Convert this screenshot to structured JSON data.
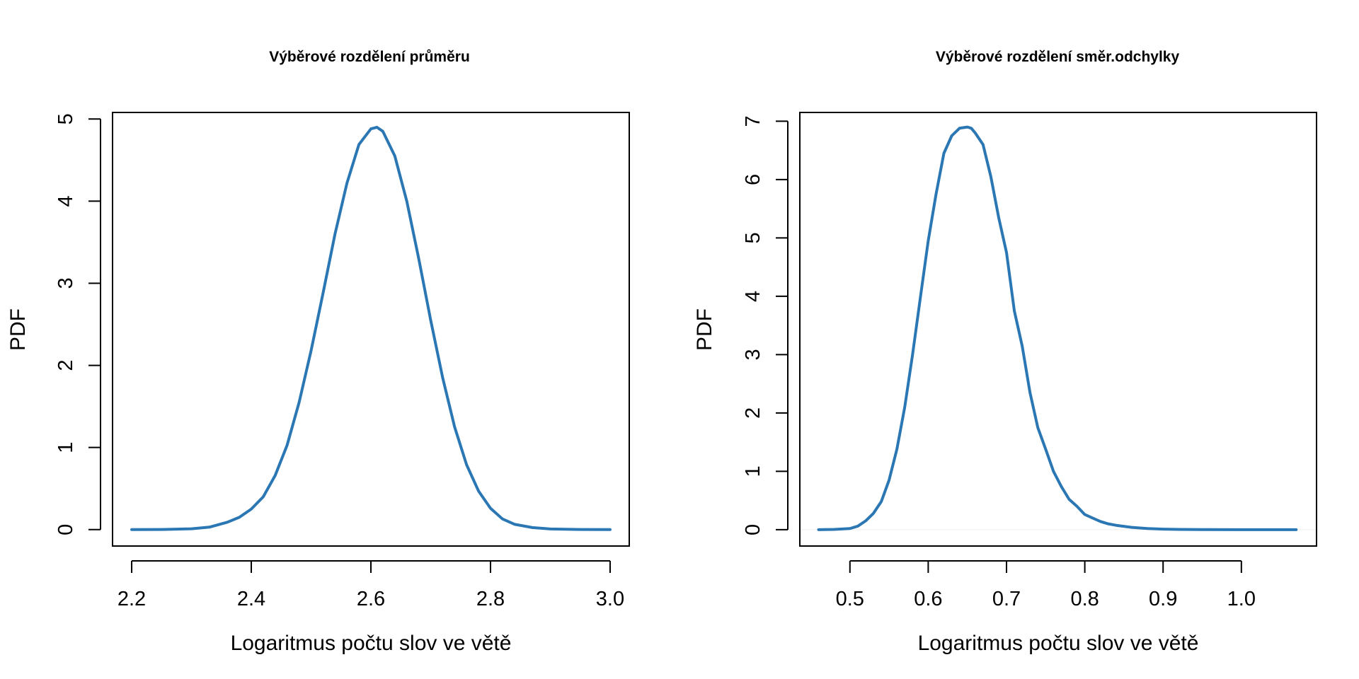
{
  "colors": {
    "line": "#2b77b4",
    "axis": "#000000",
    "background": "#ffffff"
  },
  "chart_data": [
    {
      "type": "line",
      "title": "Výběrové rozdělení průměru",
      "xlabel": "Logaritmus počtu slov ve větě",
      "ylabel": "PDF",
      "xlim": [
        2.168,
        3.032
      ],
      "ylim": [
        -0.2,
        5.08
      ],
      "xticks": [
        2.2,
        2.4,
        2.6,
        2.8,
        3.0
      ],
      "xtick_labels": [
        "2.2",
        "2.4",
        "2.6",
        "2.8",
        "3.0"
      ],
      "yticks": [
        0,
        1,
        2,
        3,
        4,
        5
      ],
      "ytick_labels": [
        "0",
        "1",
        "2",
        "3",
        "4",
        "5"
      ],
      "grid": false,
      "series": [
        {
          "x": [
            2.2,
            2.25,
            2.3,
            2.33,
            2.36,
            2.38,
            2.4,
            2.42,
            2.44,
            2.46,
            2.48,
            2.5,
            2.52,
            2.54,
            2.56,
            2.58,
            2.6,
            2.61,
            2.62,
            2.64,
            2.66,
            2.68,
            2.7,
            2.72,
            2.74,
            2.76,
            2.78,
            2.8,
            2.82,
            2.84,
            2.87,
            2.9,
            2.95,
            3.0
          ],
          "y": [
            0.0,
            0.001,
            0.01,
            0.03,
            0.09,
            0.15,
            0.25,
            0.4,
            0.66,
            1.03,
            1.55,
            2.18,
            2.88,
            3.6,
            4.22,
            4.69,
            4.88,
            4.9,
            4.85,
            4.55,
            4.0,
            3.3,
            2.55,
            1.85,
            1.25,
            0.79,
            0.47,
            0.26,
            0.13,
            0.065,
            0.025,
            0.008,
            0.001,
            0.0
          ]
        }
      ]
    },
    {
      "type": "line",
      "title": "Výběrové rozdělení směr.odchylky",
      "xlabel": "Logaritmus počtu slov ve větě",
      "ylabel": "PDF",
      "xlim": [
        0.436,
        1.096
      ],
      "ylim": [
        -0.28,
        7.15
      ],
      "xticks": [
        0.5,
        0.6,
        0.7,
        0.8,
        0.9,
        1.0
      ],
      "xtick_labels": [
        "0.5",
        "0.6",
        "0.7",
        "0.8",
        "0.9",
        "1.0"
      ],
      "yticks": [
        0,
        1,
        2,
        3,
        4,
        5,
        6,
        7
      ],
      "ytick_labels": [
        "0",
        "1",
        "2",
        "3",
        "4",
        "5",
        "6",
        "7"
      ],
      "grid": false,
      "series": [
        {
          "x": [
            0.46,
            0.48,
            0.5,
            0.51,
            0.52,
            0.53,
            0.54,
            0.55,
            0.56,
            0.57,
            0.58,
            0.59,
            0.6,
            0.61,
            0.62,
            0.63,
            0.64,
            0.65,
            0.655,
            0.66,
            0.67,
            0.68,
            0.69,
            0.7,
            0.71,
            0.72,
            0.73,
            0.74,
            0.75,
            0.76,
            0.77,
            0.78,
            0.79,
            0.8,
            0.81,
            0.82,
            0.83,
            0.84,
            0.86,
            0.88,
            0.9,
            0.92,
            0.95,
            1.0,
            1.07
          ],
          "y": [
            0.0,
            0.005,
            0.02,
            0.06,
            0.15,
            0.28,
            0.48,
            0.85,
            1.38,
            2.1,
            3.0,
            3.98,
            4.95,
            5.75,
            6.45,
            6.75,
            6.88,
            6.9,
            6.88,
            6.8,
            6.6,
            6.05,
            5.35,
            4.75,
            3.75,
            3.15,
            2.35,
            1.75,
            1.38,
            1.0,
            0.74,
            0.52,
            0.4,
            0.26,
            0.2,
            0.14,
            0.1,
            0.075,
            0.04,
            0.02,
            0.01,
            0.005,
            0.002,
            0.0,
            0.0
          ]
        }
      ]
    }
  ]
}
